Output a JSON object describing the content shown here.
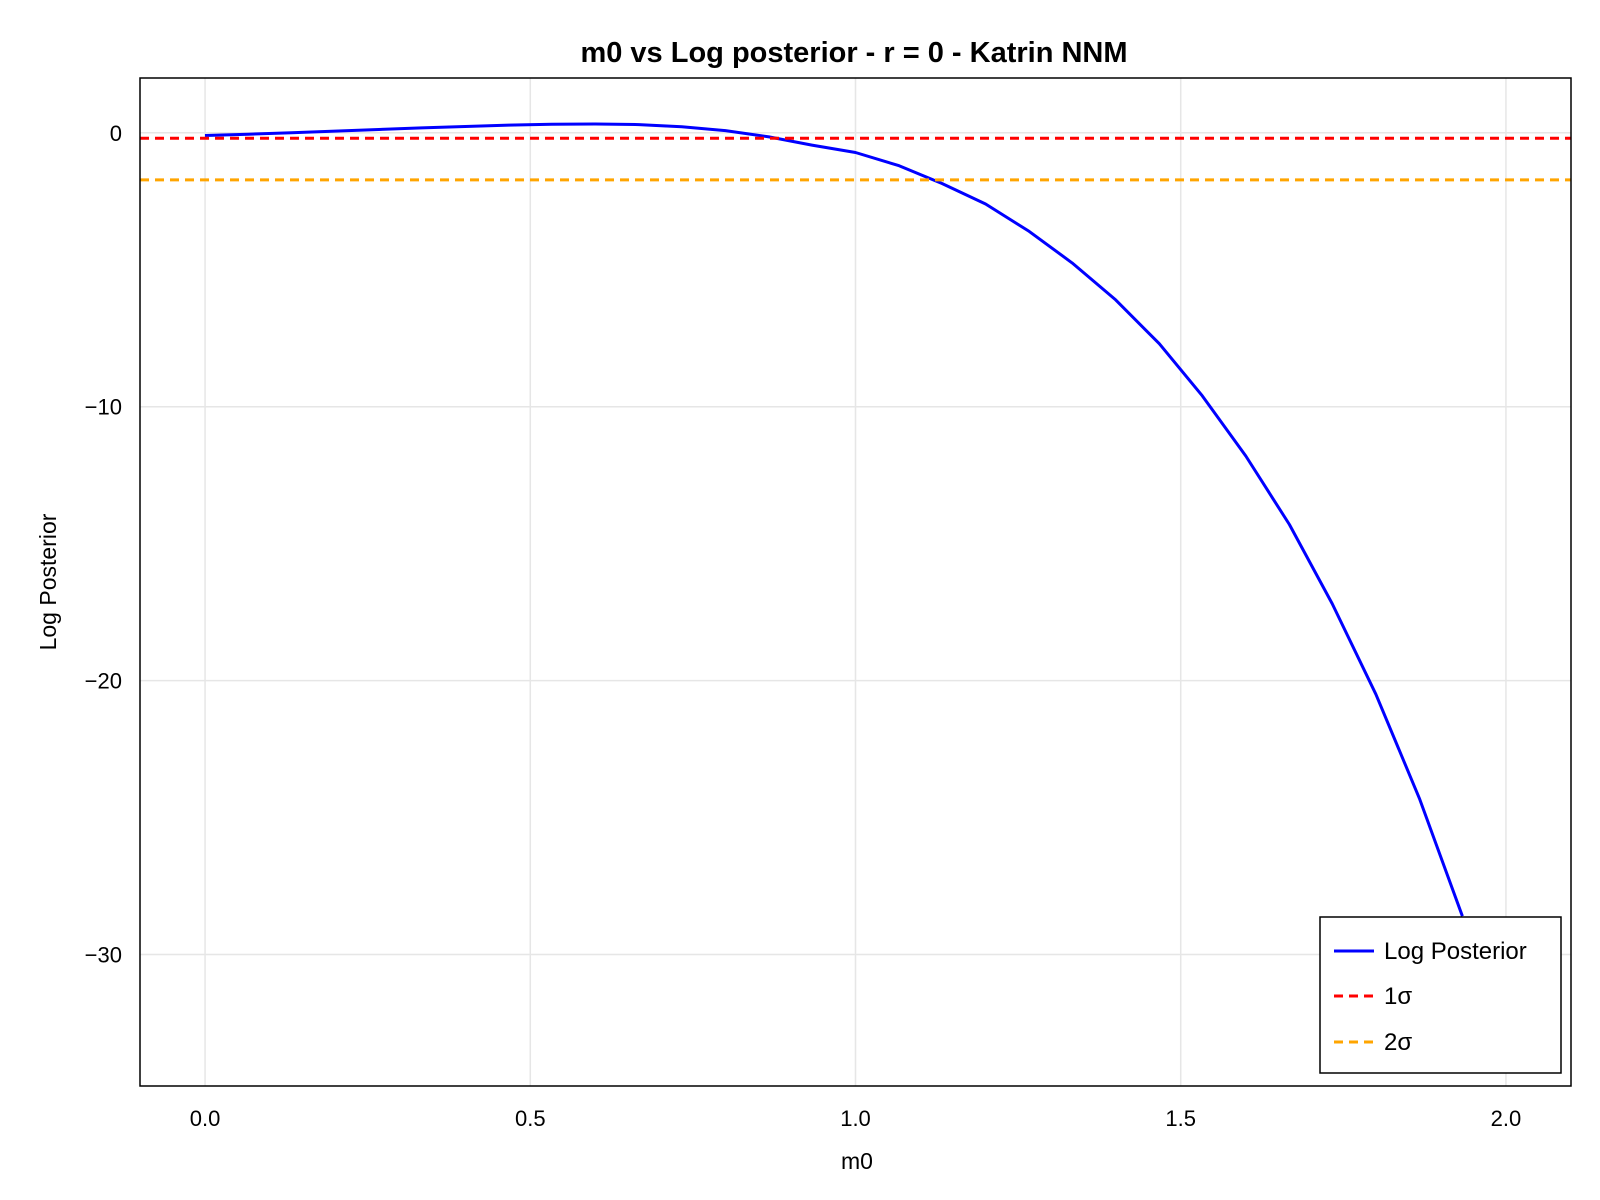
{
  "chart_data": {
    "type": "line",
    "title": "m0 vs Log posterior - r = 0 - Katrin NNM",
    "xlabel": "m0",
    "ylabel": "Log Posterior",
    "xlim": [
      -0.1,
      2.1
    ],
    "ylim": [
      -34.8,
      2.0
    ],
    "xticks": [
      0.0,
      0.5,
      1.0,
      1.5,
      2.0
    ],
    "xtick_labels": [
      "0.0",
      "0.5",
      "1.0",
      "1.5",
      "2.0"
    ],
    "yticks": [
      0,
      -10,
      -20,
      -30
    ],
    "ytick_labels": [
      "0",
      "−10",
      "−20",
      "−30"
    ],
    "grid": true,
    "legend_position": "bottom-right",
    "series": [
      {
        "name": "Log Posterior",
        "style": "solid",
        "color": "#0000ff",
        "x": [
          0.0,
          0.067,
          0.133,
          0.2,
          0.267,
          0.333,
          0.4,
          0.467,
          0.533,
          0.6,
          0.667,
          0.733,
          0.8,
          0.867,
          0.933,
          1.0,
          1.067,
          1.133,
          1.2,
          1.267,
          1.333,
          1.4,
          1.467,
          1.533,
          1.6,
          1.667,
          1.733,
          1.8,
          1.867,
          1.933
        ],
        "y": [
          -0.1,
          -0.05,
          0.0,
          0.06,
          0.12,
          0.18,
          0.23,
          0.28,
          0.31,
          0.32,
          0.3,
          0.22,
          0.08,
          -0.15,
          -0.45,
          -0.72,
          -1.2,
          -1.85,
          -2.6,
          -3.6,
          -4.75,
          -6.1,
          -7.7,
          -9.6,
          -11.8,
          -14.3,
          -17.2,
          -20.5,
          -24.3,
          -28.6
        ]
      },
      {
        "name": "1σ",
        "style": "dashed",
        "color": "#ff0000",
        "type": "hline",
        "y": -0.2
      },
      {
        "name": "2σ",
        "style": "dashed",
        "color": "#ffa500",
        "type": "hline",
        "y": -1.72
      }
    ]
  },
  "colors": {
    "grid": "#e6e6e6",
    "frame": "#000000"
  }
}
